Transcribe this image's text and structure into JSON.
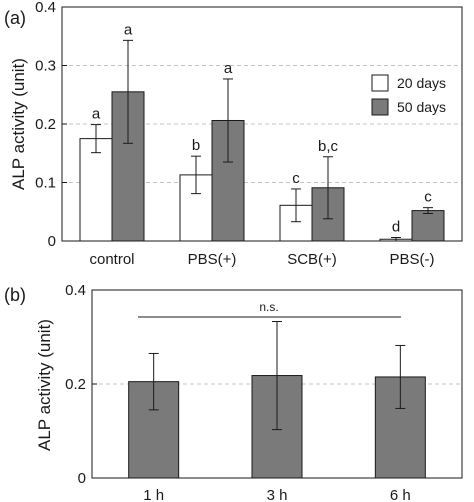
{
  "colors": {
    "white_bar": "#ffffff",
    "gray_bar": "#7a7a7a",
    "axis": "#1a1a1a",
    "grid": "#c4c4c4"
  },
  "chart_data": [
    {
      "type": "bar",
      "panel_label": "(a)",
      "ylabel": "ALP activity (unit)",
      "xlabel": "",
      "ylim": [
        0,
        0.4
      ],
      "yticks": [
        0,
        0.1,
        0.2,
        0.3,
        0.4
      ],
      "ytick_labels": [
        "0",
        "0.1",
        "0.2",
        "0.3",
        "0.4"
      ],
      "grid": "horizontal dashed at 0.1, 0.2, 0.3",
      "legend_position": "right",
      "categories": [
        "control",
        "PBS(+)",
        "SCB(+)",
        "PBS(-)"
      ],
      "series": [
        {
          "name": "20 days",
          "color": "#ffffff",
          "values": [
            0.175,
            0.113,
            0.061,
            0.003
          ],
          "errors": [
            0.024,
            0.032,
            0.028,
            0.003
          ],
          "annotations": [
            "a",
            "b",
            "c",
            "d"
          ]
        },
        {
          "name": "50 days",
          "color": "#7a7a7a",
          "values": [
            0.255,
            0.206,
            0.091,
            0.052
          ],
          "errors": [
            0.088,
            0.071,
            0.053,
            0.005
          ],
          "annotations": [
            "a",
            "a",
            "b,c",
            "c"
          ]
        }
      ]
    },
    {
      "type": "bar",
      "panel_label": "(b)",
      "ylabel": "ALP activity (unit)",
      "xlabel": "",
      "ylim": [
        0,
        0.4
      ],
      "yticks": [
        0,
        0.2,
        0.4
      ],
      "ytick_labels": [
        "0",
        "0.2",
        "0.4"
      ],
      "grid": "horizontal dashed at 0.2",
      "categories": [
        "1 h",
        "3 h",
        "6 h"
      ],
      "series": [
        {
          "name": "",
          "color": "#7a7a7a",
          "values": [
            0.205,
            0.218,
            0.215
          ],
          "errors": [
            0.06,
            0.115,
            0.067
          ]
        }
      ],
      "annotation": "n.s."
    }
  ]
}
